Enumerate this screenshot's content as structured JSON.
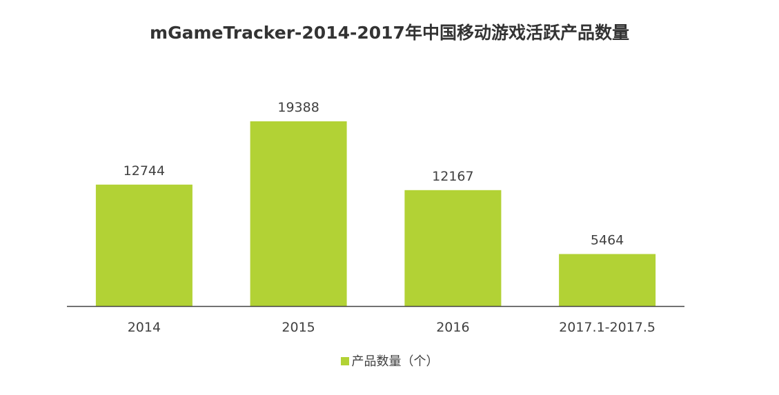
{
  "chart_data": {
    "type": "bar",
    "title": "mGameTracker-2014-2017年中国移动游戏活跃产品数量",
    "categories": [
      "2014",
      "2015",
      "2016",
      "2017.1-2017.5"
    ],
    "series": [
      {
        "name": "产品数量（个）",
        "values": [
          12744,
          19388,
          12167,
          5464
        ],
        "color": "#b2d235"
      }
    ],
    "ylim": [
      0,
      21000
    ],
    "xlabel": "",
    "ylabel": "",
    "grid": false,
    "legend": "bottom-center",
    "data_labels": true
  }
}
